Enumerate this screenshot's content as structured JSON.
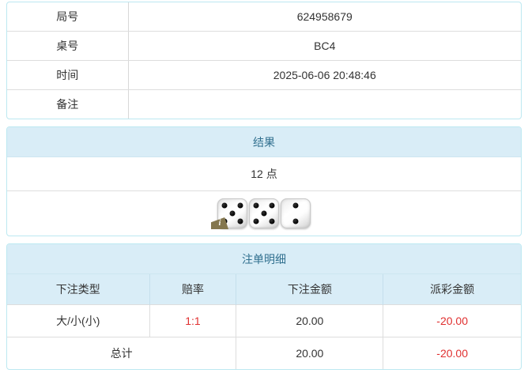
{
  "info": {
    "rows": [
      {
        "label": "局号",
        "value": "624958679"
      },
      {
        "label": "桌号",
        "value": "BC4"
      },
      {
        "label": "时间",
        "value": "2025-06-06 20:48:46"
      },
      {
        "label": "备注",
        "value": ""
      }
    ]
  },
  "result": {
    "title": "结果",
    "points": "12 点",
    "dice": [
      5,
      5,
      2
    ],
    "info_icon": "i"
  },
  "bets": {
    "title": "注单明细",
    "columns": [
      "下注类型",
      "赔率",
      "下注金额",
      "派彩金额"
    ],
    "rows": [
      {
        "type": "大/小(小)",
        "odds": "1:1",
        "amount": "20.00",
        "payout": "-20.00"
      }
    ],
    "total": {
      "label": "总计",
      "amount": "20.00",
      "payout": "-20.00"
    }
  },
  "colors": {
    "panel_border": "#bce8f1",
    "heading_bg": "#d9edf7",
    "heading_text": "#31708f",
    "row_border": "#dddddd",
    "text": "#333333",
    "negative": "#e03030"
  }
}
